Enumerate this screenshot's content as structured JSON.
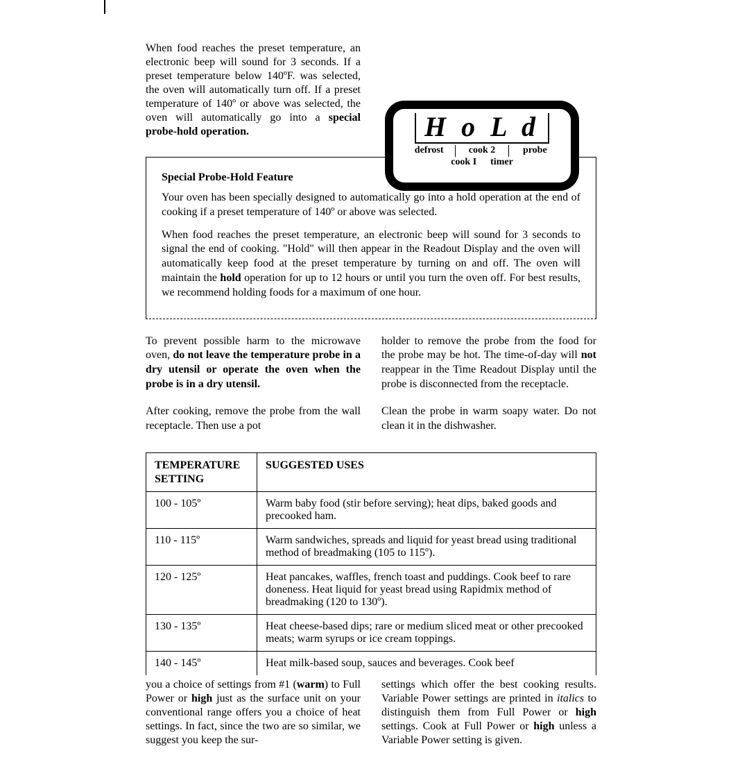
{
  "intro_p1a": "When food reaches the preset temper­ature, an electronic beep will sound for 3 seconds. If a preset temperature below 140ºF. was selected, the oven will automatically turn off. If a preset temperature of 140º or above was se­lected, the oven will automatically go into a ",
  "intro_p1b": "special probe-hold operation.",
  "display": {
    "hold": "H o L d",
    "row1": [
      "defrost",
      "cook 2",
      "probe"
    ],
    "row2": [
      "cook I",
      "timer"
    ]
  },
  "feature": {
    "title": "Special Probe-Hold Feature",
    "p1": "Your oven has been specially designed to automatically go into a hold opera­tion at the end of cooking if a preset temperature of 140º or above was se­lected.",
    "p2a": "When food reaches the preset temperature, an electronic beep will sound for 3 seconds to signal the end of cooking. \"Hold\" will then appear in the Readout Display and the oven will automatically keep food at the preset tem­perature by turning on and off. The oven will maintain the ",
    "p2b": "hold",
    "p2c": " operation for up to 12 hours or until you turn the oven off. For best results, we recommend holding foods for a maximum of one hour."
  },
  "warn": {
    "left1a": "To prevent possible harm to the microwave oven, ",
    "left1b": "do not leave the tem­perature probe in a dry utensil or operate the oven when the probe is in a dry utensil.",
    "left2": "After cooking, remove the probe from the wall receptacle. Then use a pot",
    "right1a": "holder to remove the probe from the food for the probe may be hot. The time-of-day will ",
    "right1b": "not",
    "right1c": " reappear in the Time Readout Display until the probe is disconnected from the receptacle.",
    "right2": "Clean the probe in warm soapy water. Do not clean it in the dishwasher."
  },
  "table": {
    "head1a": "TEMPERATURE",
    "head1b": "SETTING",
    "head2": "SUGGESTED USES",
    "rows": [
      {
        "setting": "100 - 105º",
        "use": "Warm baby food (stir before serving); heat dips, baked goods and precooked ham."
      },
      {
        "setting": "110 - 115º",
        "use": "Warm sandwiches, spreads and liquid for yeast bread using traditional method of breadmaking (105 to 115º)."
      },
      {
        "setting": "120 - 125º",
        "use": "Heat pancakes, waffles, french toast and puddings. Cook beef to rare doneness. Heat liquid for yeast bread using Rapidmix method of breadmaking (120 to 130º)."
      },
      {
        "setting": "130 - 135º",
        "use": "Heat cheese-based dips; rare or medium sliced meat or other precooked meats; warm syrups or ice cream top­pings."
      },
      {
        "setting": "140 - 145º",
        "use": "Heat milk-based soup, sauces and beverages. Cook beef"
      }
    ]
  },
  "bottom": {
    "left_a": "you a choice of settings from #1 (",
    "left_b": "warm",
    "left_c": ") to Full Power or ",
    "left_d": "high",
    "left_e": " just as the surface unit on your conventional range offers you a choice of heat set­tings. In fact, since the two are so similar, we suggest you keep the sur-",
    "right_a": "settings which offer the best cooking results. Variable Power settings are printed in ",
    "right_b": "italics",
    "right_c": " to distinguish them from Full Power or ",
    "right_d": "high",
    "right_e": " settings. Cook at Full Power or ",
    "right_f": "high",
    "right_g": " unless a Var­iable Power setting is given."
  }
}
